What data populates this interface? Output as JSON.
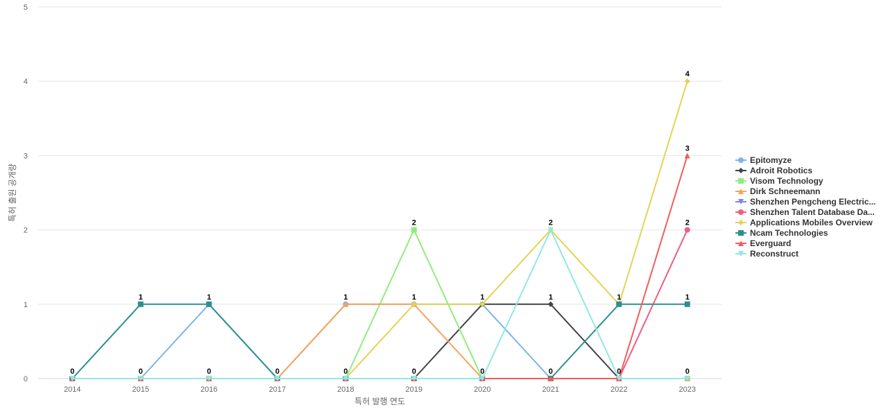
{
  "chart_data": {
    "type": "line",
    "title": "",
    "xlabel": "특허 발행 연도",
    "ylabel": "특허 출원 공개량",
    "categories": [
      "2014",
      "2015",
      "2016",
      "2017",
      "2018",
      "2019",
      "2020",
      "2021",
      "2022",
      "2023"
    ],
    "ylim": [
      0,
      5
    ],
    "yticks": [
      0,
      1,
      2,
      3,
      4,
      5
    ],
    "grid": true,
    "legend_position": "right",
    "series": [
      {
        "name": "Epitomyze",
        "color": "#7cb5ec",
        "marker": "circle",
        "values": [
          0,
          0,
          1,
          0,
          1,
          1,
          1,
          0,
          0,
          0
        ]
      },
      {
        "name": "Adroit Robotics",
        "color": "#434348",
        "marker": "diamond",
        "values": [
          0,
          0,
          0,
          0,
          0,
          0,
          1,
          1,
          0,
          0
        ]
      },
      {
        "name": "Visom Technology",
        "color": "#90ed7d",
        "marker": "square",
        "values": [
          0,
          0,
          0,
          0,
          0,
          2,
          0,
          0,
          0,
          0
        ]
      },
      {
        "name": "Dirk Schneemann",
        "color": "#f7a35c",
        "marker": "triangle",
        "values": [
          0,
          0,
          0,
          0,
          1,
          1,
          0,
          0,
          0,
          0
        ]
      },
      {
        "name": "Shenzhen Pengcheng Electric...",
        "color": "#8085e9",
        "marker": "triangle-down",
        "values": [
          0,
          0,
          0,
          0,
          0,
          0,
          0,
          0,
          0,
          0
        ]
      },
      {
        "name": "Shenzhen Talent Database Da...",
        "color": "#f15c80",
        "marker": "circle",
        "values": [
          0,
          0,
          0,
          0,
          0,
          0,
          0,
          0,
          0,
          2
        ]
      },
      {
        "name": "Applications Mobiles Overview",
        "color": "#e4d354",
        "marker": "diamond",
        "values": [
          0,
          0,
          0,
          0,
          0,
          1,
          1,
          2,
          1,
          4
        ]
      },
      {
        "name": "Ncam Technologies",
        "color": "#2b908f",
        "marker": "square",
        "values": [
          0,
          1,
          1,
          0,
          0,
          0,
          0,
          0,
          1,
          1
        ]
      },
      {
        "name": "Everguard",
        "color": "#f45b5b",
        "marker": "triangle",
        "values": [
          0,
          0,
          0,
          0,
          0,
          0,
          0,
          0,
          0,
          3
        ]
      },
      {
        "name": "Reconstruct",
        "color": "#91e8e1",
        "marker": "triangle-down",
        "values": [
          0,
          0,
          0,
          0,
          0,
          0,
          0,
          2,
          0,
          0
        ]
      }
    ],
    "data_labels": [
      {
        "category": "2014",
        "value": 0,
        "label": "0"
      },
      {
        "category": "2015",
        "value": 1,
        "label": "1"
      },
      {
        "category": "2015",
        "value": 0,
        "label": "0"
      },
      {
        "category": "2016",
        "value": 1,
        "label": "1"
      },
      {
        "category": "2016",
        "value": 0,
        "label": "0"
      },
      {
        "category": "2017",
        "value": 0,
        "label": "0"
      },
      {
        "category": "2018",
        "value": 1,
        "label": "1"
      },
      {
        "category": "2018",
        "value": 0,
        "label": "0"
      },
      {
        "category": "2019",
        "value": 2,
        "label": "2"
      },
      {
        "category": "2019",
        "value": 1,
        "label": "1"
      },
      {
        "category": "2019",
        "value": 0,
        "label": "0"
      },
      {
        "category": "2020",
        "value": 1,
        "label": "1"
      },
      {
        "category": "2020",
        "value": 0,
        "label": "0"
      },
      {
        "category": "2021",
        "value": 2,
        "label": "2"
      },
      {
        "category": "2021",
        "value": 1,
        "label": "1"
      },
      {
        "category": "2021",
        "value": 0,
        "label": "0"
      },
      {
        "category": "2022",
        "value": 1,
        "label": "1"
      },
      {
        "category": "2022",
        "value": 0,
        "label": "0"
      },
      {
        "category": "2023",
        "value": 4,
        "label": "4"
      },
      {
        "category": "2023",
        "value": 3,
        "label": "3"
      },
      {
        "category": "2023",
        "value": 2,
        "label": "2"
      },
      {
        "category": "2023",
        "value": 1,
        "label": "1"
      },
      {
        "category": "2023",
        "value": 0,
        "label": "0"
      }
    ]
  }
}
